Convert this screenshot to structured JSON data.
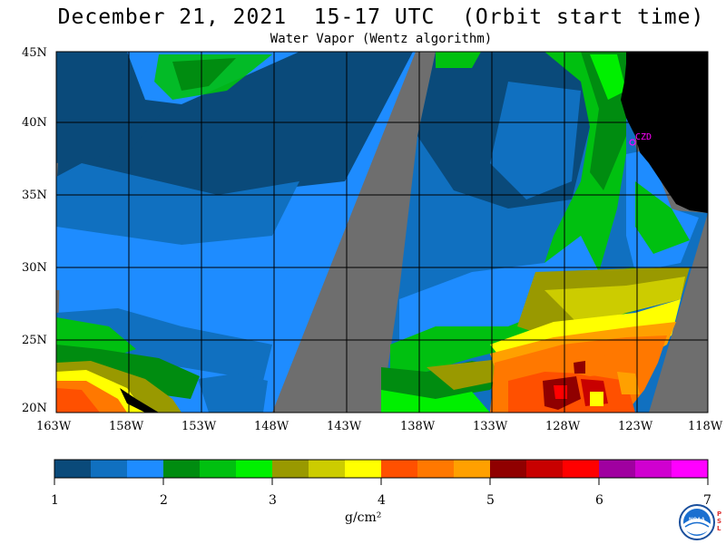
{
  "title": "December 21, 2021  15-17 UTC  (Orbit start time)",
  "subtitle": "Water Vapor (Wentz algorithm)",
  "map": {
    "lat_labels": [
      "45N",
      "40N",
      "35N",
      "30N",
      "25N",
      "20N"
    ],
    "lon_labels": [
      "163W",
      "158W",
      "153W",
      "148W",
      "143W",
      "138W",
      "133W",
      "128W",
      "123W",
      "118W"
    ],
    "station_label": "CZD",
    "colors": {
      "no_data": "#6e6e6e",
      "land": "#000000",
      "grid": "#000000",
      "station": "#ff00ff"
    }
  },
  "colorbar": {
    "colors": [
      "#0a4a7a",
      "#1070c0",
      "#1e8cff",
      "#008c10",
      "#00c010",
      "#00f000",
      "#999900",
      "#cccc00",
      "#ffff00",
      "#ff5000",
      "#ff7800",
      "#ffa000",
      "#900000",
      "#c80000",
      "#ff0000",
      "#a000a0",
      "#d000d0",
      "#ff00ff"
    ],
    "ticks": [
      "1",
      "2",
      "3",
      "4",
      "5",
      "6",
      "7"
    ],
    "units": "g/cm²"
  },
  "logo": {
    "text": "NOAA",
    "side_text": "PSL"
  }
}
